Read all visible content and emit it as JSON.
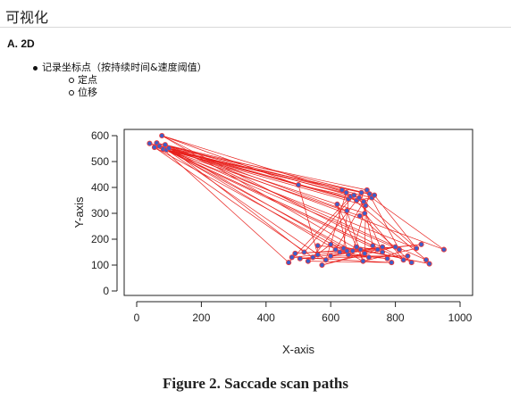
{
  "page": {
    "heading": "可视化",
    "section": "A. 2D",
    "bullets": [
      {
        "label": "记录坐标点（按持续时间&速度阈值）",
        "children": [
          "定点",
          "位移"
        ]
      }
    ],
    "caption": "Figure 2. Saccade scan paths"
  },
  "colors": {
    "path": "#e8201c",
    "point_fill": "#3b5fc9",
    "point_stroke": "#f03a3a"
  },
  "chart_data": {
    "type": "scatter",
    "title": "",
    "xlabel": "X-axis",
    "ylabel": "Y-axis",
    "xlim": [
      -30,
      1030
    ],
    "ylim": [
      -20,
      625
    ],
    "xticks": [
      0,
      200,
      400,
      600,
      800,
      1000
    ],
    "yticks": [
      0,
      100,
      200,
      300,
      400,
      500,
      600
    ],
    "grid": false,
    "points": [
      [
        40,
        570
      ],
      [
        55,
        555
      ],
      [
        62,
        572
      ],
      [
        70,
        560
      ],
      [
        78,
        600
      ],
      [
        82,
        548
      ],
      [
        88,
        565
      ],
      [
        92,
        545
      ],
      [
        100,
        552
      ],
      [
        500,
        410
      ],
      [
        635,
        390
      ],
      [
        648,
        380
      ],
      [
        655,
        355
      ],
      [
        662,
        365
      ],
      [
        672,
        370
      ],
      [
        680,
        350
      ],
      [
        688,
        360
      ],
      [
        695,
        380
      ],
      [
        702,
        345
      ],
      [
        708,
        330
      ],
      [
        712,
        390
      ],
      [
        720,
        375
      ],
      [
        727,
        360
      ],
      [
        735,
        370
      ],
      [
        690,
        290
      ],
      [
        705,
        300
      ],
      [
        650,
        310
      ],
      [
        620,
        335
      ],
      [
        600,
        180
      ],
      [
        560,
        175
      ],
      [
        470,
        110
      ],
      [
        480,
        130
      ],
      [
        490,
        145
      ],
      [
        505,
        125
      ],
      [
        518,
        150
      ],
      [
        530,
        115
      ],
      [
        545,
        130
      ],
      [
        560,
        140
      ],
      [
        573,
        100
      ],
      [
        585,
        120
      ],
      [
        600,
        135
      ],
      [
        615,
        160
      ],
      [
        628,
        150
      ],
      [
        640,
        165
      ],
      [
        655,
        140
      ],
      [
        668,
        155
      ],
      [
        680,
        170
      ],
      [
        692,
        160
      ],
      [
        705,
        145
      ],
      [
        718,
        130
      ],
      [
        730,
        175
      ],
      [
        745,
        160
      ],
      [
        760,
        150
      ],
      [
        775,
        125
      ],
      [
        788,
        110
      ],
      [
        800,
        170
      ],
      [
        812,
        160
      ],
      [
        825,
        120
      ],
      [
        838,
        135
      ],
      [
        850,
        110
      ],
      [
        865,
        165
      ],
      [
        880,
        180
      ],
      [
        895,
        120
      ],
      [
        905,
        105
      ],
      [
        950,
        160
      ],
      [
        760,
        170
      ],
      [
        700,
        115
      ],
      [
        650,
        155
      ]
    ],
    "path_order": [
      0,
      9,
      13,
      30,
      5,
      18,
      41,
      2,
      22,
      64,
      8,
      15,
      36,
      1,
      10,
      62,
      6,
      21,
      45,
      3,
      25,
      57,
      7,
      19,
      48,
      4,
      11,
      39,
      2,
      16,
      52,
      5,
      23,
      60,
      0,
      12,
      43,
      8,
      20,
      56,
      3,
      14,
      34,
      6,
      26,
      66,
      1,
      17,
      50,
      7,
      24,
      59,
      4,
      9,
      37,
      29,
      47,
      63,
      28,
      35,
      54,
      31,
      61,
      33,
      58,
      40,
      65,
      42,
      53,
      44,
      49,
      46,
      51,
      38,
      55,
      32,
      67,
      27,
      66,
      60,
      18,
      22,
      15,
      13
    ]
  }
}
